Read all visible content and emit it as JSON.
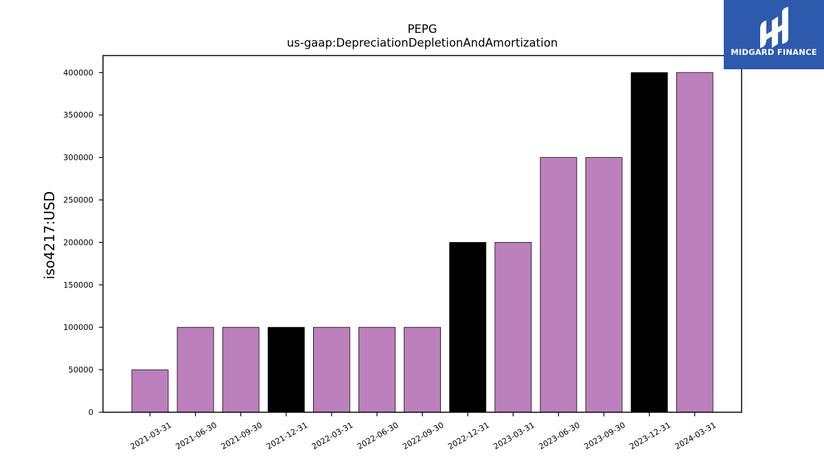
{
  "logo": {
    "text": "MIDGARD FINANCE",
    "bg_color": "#2d5aad"
  },
  "chart_data": {
    "type": "bar",
    "title": "PEPG",
    "subtitle": "us-gaap:DepreciationDepletionAndAmortization",
    "xlabel": "",
    "ylabel": "iso4217:USD",
    "ylim": [
      0,
      420000
    ],
    "yticks": [
      0,
      50000,
      100000,
      150000,
      200000,
      250000,
      300000,
      350000,
      400000
    ],
    "grid": false,
    "categories": [
      "2021-03-31",
      "2021-06-30",
      "2021-09-30",
      "2021-12-31",
      "2022-03-31",
      "2022-06-30",
      "2022-09-30",
      "2022-12-31",
      "2023-03-31",
      "2023-06-30",
      "2023-09-30",
      "2023-12-31",
      "2024-03-31"
    ],
    "values": [
      50000,
      100000,
      100000,
      100000,
      100000,
      100000,
      100000,
      200000,
      200000,
      300000,
      300000,
      400000,
      400000
    ],
    "colors": [
      "#bc80bd",
      "#bc80bd",
      "#bc80bd",
      "#000000",
      "#bc80bd",
      "#bc80bd",
      "#bc80bd",
      "#000000",
      "#bc80bd",
      "#bc80bd",
      "#bc80bd",
      "#000000",
      "#bc80bd"
    ]
  }
}
